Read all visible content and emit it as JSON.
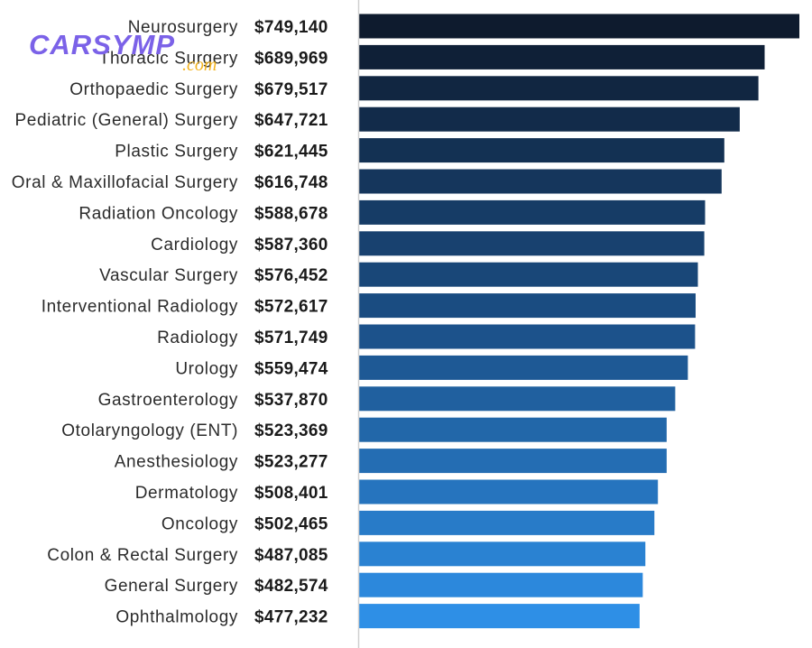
{
  "watermark": {
    "brand": "CARSYMP",
    "domain": ".com"
  },
  "colors": {
    "bar_darkest": "#0e1b2e",
    "bar_mid": "#1b4f86",
    "bar_lightest": "#2e8fe6",
    "axis": "#d0d0d0"
  },
  "chart_data": {
    "type": "bar",
    "orientation": "horizontal",
    "title": "",
    "xlabel": "",
    "ylabel": "",
    "xlim": [
      0,
      749140
    ],
    "grid": false,
    "categories": [
      "Neurosurgery",
      "Thoracic Surgery",
      "Orthopaedic Surgery",
      "Pediatric (General) Surgery",
      "Plastic Surgery",
      "Oral & Maxillofacial Surgery",
      "Radiation Oncology",
      "Cardiology",
      "Vascular Surgery",
      "Interventional Radiology",
      "Radiology",
      "Urology",
      "Gastroenterology",
      "Otolaryngology (ENT)",
      "Anesthesiology",
      "Dermatology",
      "Oncology",
      "Colon & Rectal Surgery",
      "General Surgery",
      "Ophthalmology"
    ],
    "values": [
      749140,
      689969,
      679517,
      647721,
      621445,
      616748,
      588678,
      587360,
      576452,
      572617,
      571749,
      559474,
      537870,
      523369,
      523277,
      508401,
      502465,
      487085,
      482574,
      477232
    ],
    "value_labels": [
      "$749,140",
      "$689,969",
      "$679,517",
      "$647,721",
      "$621,445",
      "$616,748",
      "$588,678",
      "$587,360",
      "$576,452",
      "$572,617",
      "$571,749",
      "$559,474",
      "$537,870",
      "$523,369",
      "$523,277",
      "$508,401",
      "$502,465",
      "$487,085",
      "$482,574",
      "$477,232"
    ]
  }
}
